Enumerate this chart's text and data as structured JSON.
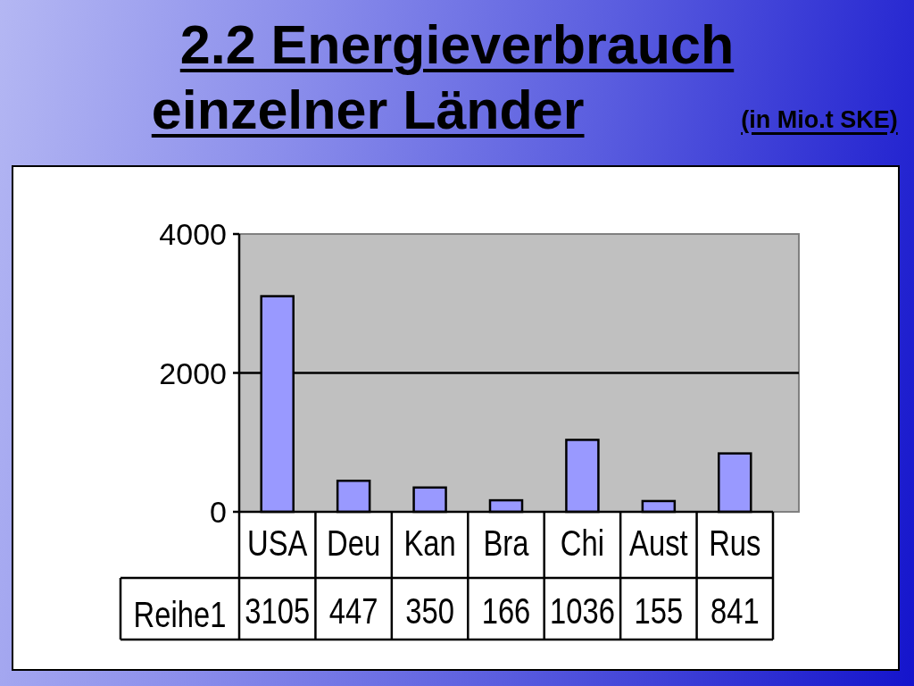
{
  "chart_data": {
    "type": "bar",
    "title": "2.2 Energieverbrauch\neinzelner Länder",
    "subtitle": "(in Mio.t SKE)",
    "categories": [
      "USA",
      "Deu",
      "Kan",
      "Bra",
      "Chi",
      "Aust",
      "Rus"
    ],
    "series": [
      {
        "name": "Reihe1",
        "color": "#9999ff",
        "values": [
          3105,
          447,
          350,
          166,
          1036,
          155,
          841
        ]
      }
    ],
    "ylim": [
      0,
      4000
    ],
    "yticks": [
      0,
      2000,
      4000
    ],
    "grid": "y",
    "data_labels": true
  }
}
